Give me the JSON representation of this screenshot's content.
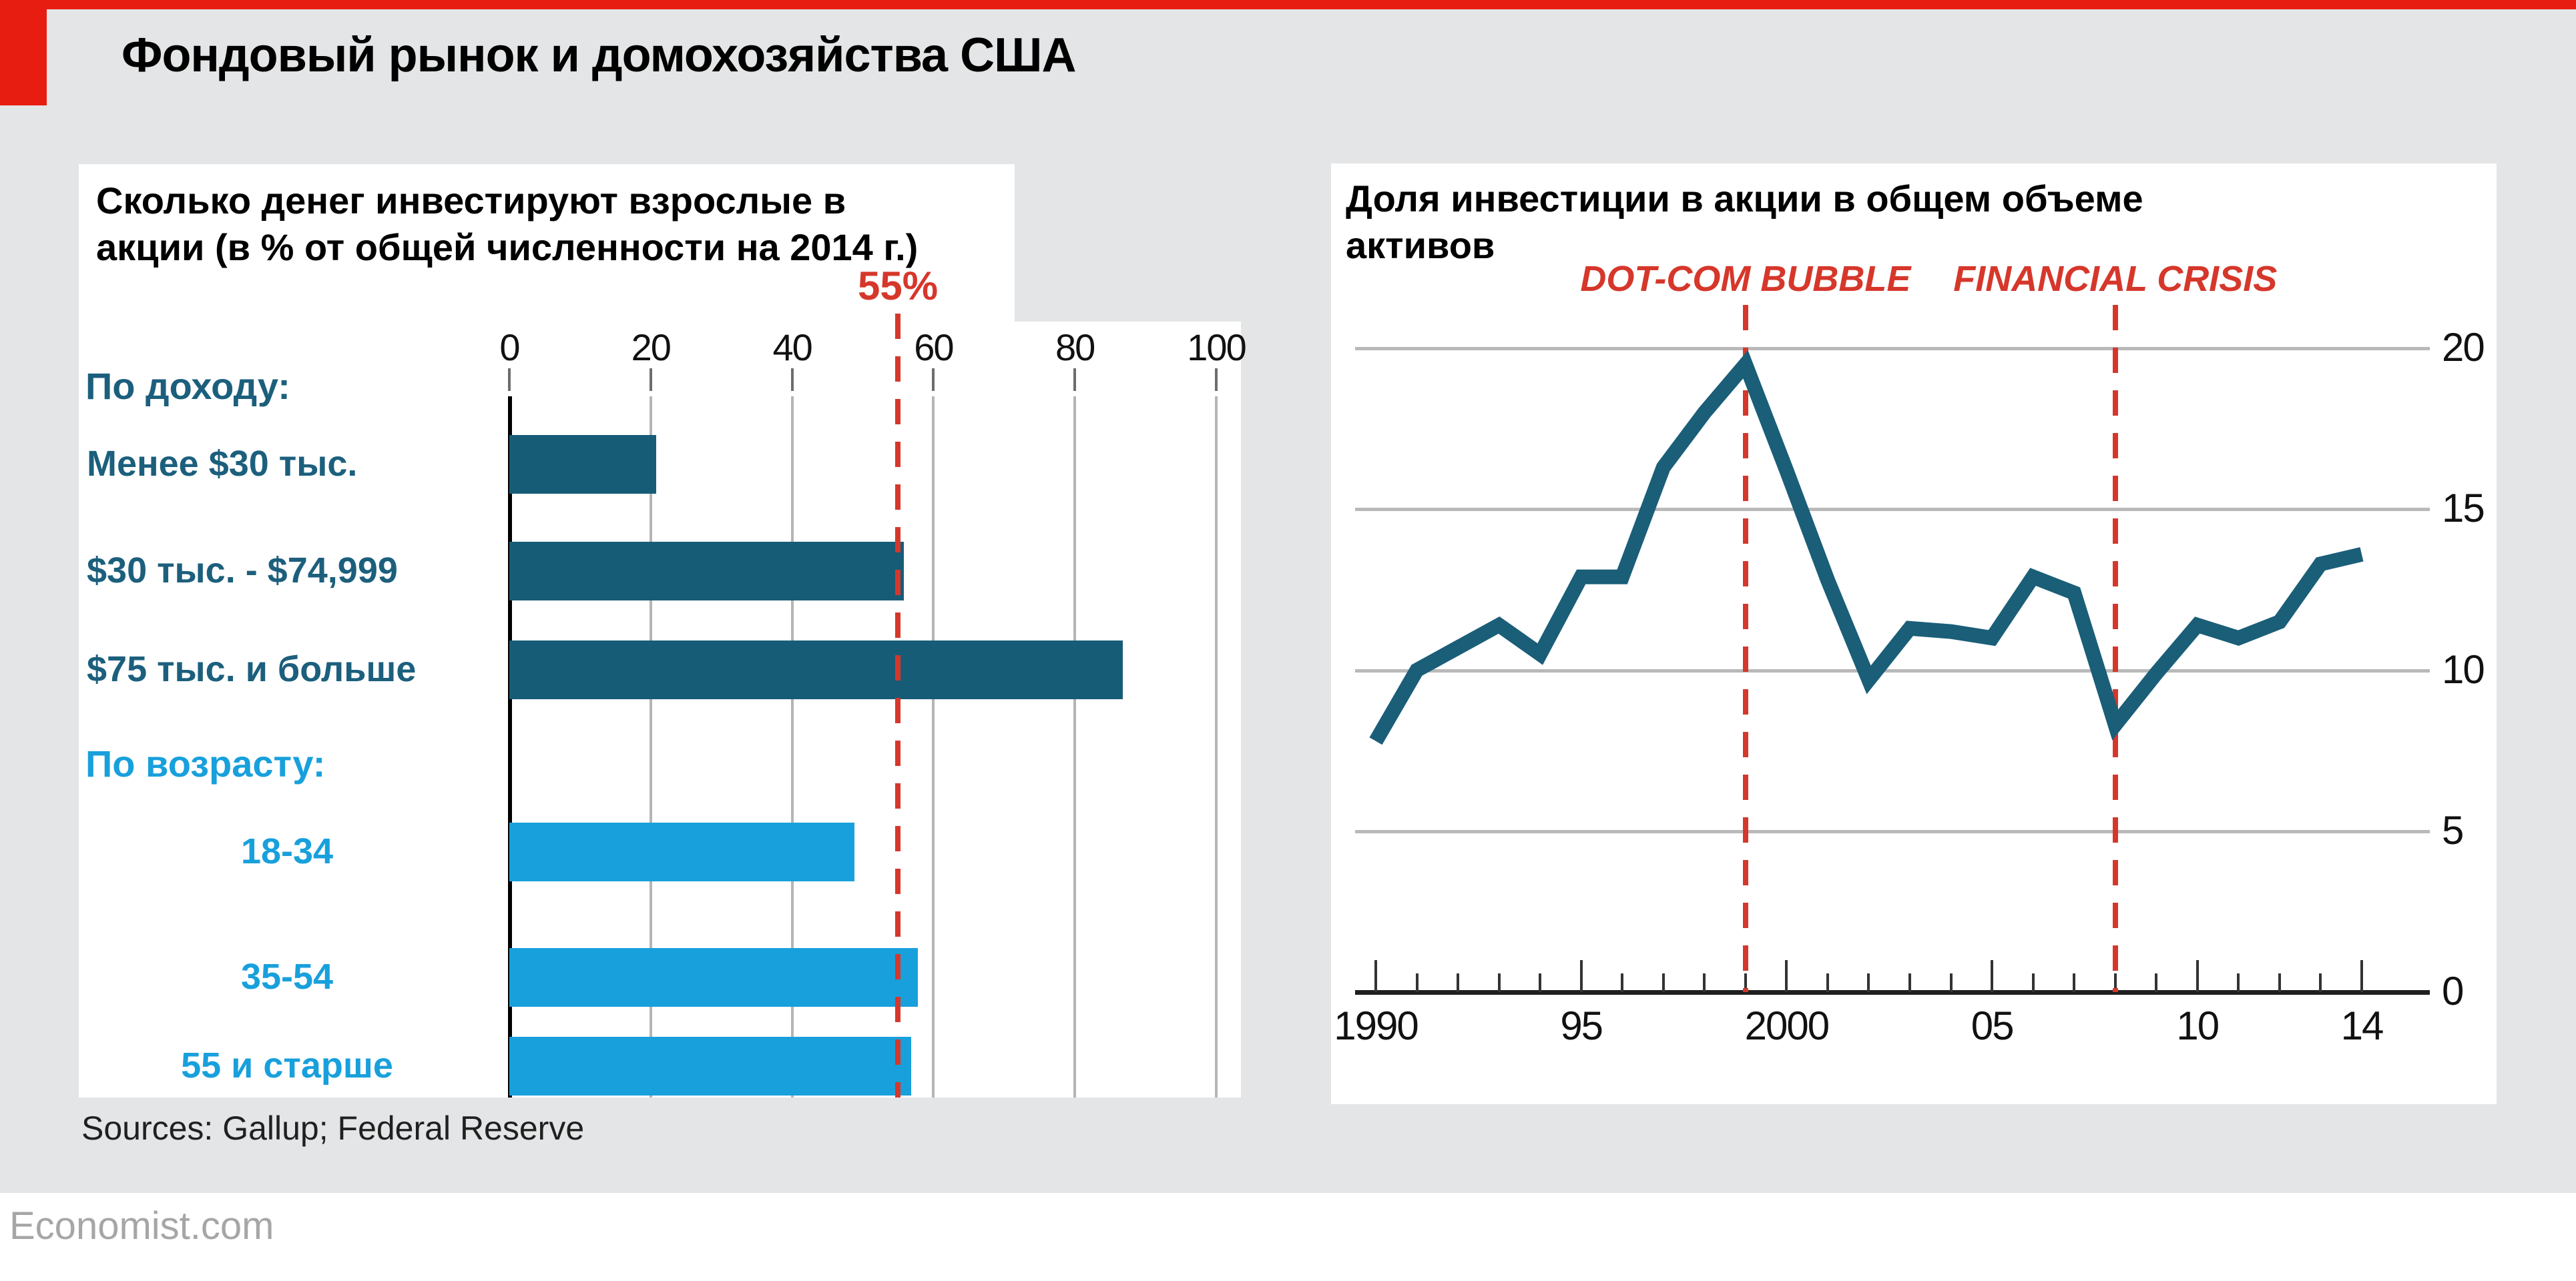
{
  "header": {
    "title": "Фондовый рынок и домохозяйства США"
  },
  "footer": {
    "sources": "Sources: Gallup; Federal Reserve",
    "site": "Economist.com"
  },
  "colors": {
    "background": "#e4e5e6",
    "panel": "#ffffff",
    "brand_red": "#e81d12",
    "chart_red": "#d6372b",
    "dark_teal": "#1c5f7d",
    "bright_blue": "#18a0dc",
    "gridline": "#b9b9b9",
    "axis_black": "#1f1f1f",
    "footer_gray": "#a6a6a6"
  },
  "chart_data": [
    {
      "type": "bar",
      "orientation": "horizontal",
      "title": "Сколько денег инвестируют взрослые в акции (в % от общей численности на 2014 г.)",
      "title_lines": [
        "Сколько денег инвестируют взрослые в",
        "акции (в % от общей численности на 2014 г.)"
      ],
      "xlim": [
        0,
        100
      ],
      "x_ticks": [
        "0",
        "20",
        "40",
        "60",
        "80",
        "100"
      ],
      "grid": "vertical",
      "reference_line": {
        "value": 55,
        "label": "55%"
      },
      "groups": [
        {
          "label": "По доходу:",
          "color": "#175c77",
          "label_color": "#1c5f7d",
          "bars": [
            {
              "label": "Менее $30 тыс.",
              "value": 21
            },
            {
              "label": "$30 тыс. - $74,999",
              "value": 56
            },
            {
              "label": "$75 тыс. и больше",
              "value": 87
            }
          ]
        },
        {
          "label": "По возрасту:",
          "color": "#18a0dc",
          "label_color": "#18a0dc",
          "bars": [
            {
              "label": "18-34",
              "value": 49
            },
            {
              "label": "35-54",
              "value": 58
            },
            {
              "label": "55 и старше",
              "value": 57
            }
          ]
        }
      ]
    },
    {
      "type": "line",
      "title": "Доля инвестиции в акции в общем объеме активов",
      "title_lines": [
        "Доля инвестиции в акции в общем объеме",
        "активов"
      ],
      "ylim": [
        0,
        20
      ],
      "y_ticks": [
        0,
        5,
        10,
        15,
        20
      ],
      "y_axis_side": "right",
      "grid": "horizontal",
      "x_tick_labels": [
        {
          "year": 1990,
          "label": "1990"
        },
        {
          "year": 1995,
          "label": "95"
        },
        {
          "year": 2000,
          "label": "2000"
        },
        {
          "year": 2005,
          "label": "05"
        },
        {
          "year": 2010,
          "label": "10"
        },
        {
          "year": 2014,
          "label": "14"
        }
      ],
      "annotations": [
        {
          "label": "DOT-COM BUBBLE",
          "year": 1999
        },
        {
          "label": "FINANCIAL CRISIS",
          "year": 2008
        }
      ],
      "x": [
        1990,
        1991,
        1992,
        1993,
        1994,
        1995,
        1996,
        1997,
        1998,
        1999,
        2000,
        2001,
        2002,
        2003,
        2004,
        2005,
        2006,
        2007,
        2008,
        2009,
        2010,
        2011,
        2012,
        2013,
        2014
      ],
      "values": [
        7.8,
        10.0,
        10.7,
        11.4,
        10.5,
        12.9,
        12.9,
        16.3,
        18.0,
        19.5,
        16.2,
        12.8,
        9.7,
        11.3,
        11.2,
        11.0,
        12.9,
        12.4,
        8.3,
        9.9,
        11.4,
        11.0,
        11.5,
        13.3,
        13.6
      ],
      "line_color": "#1a5e78"
    }
  ]
}
